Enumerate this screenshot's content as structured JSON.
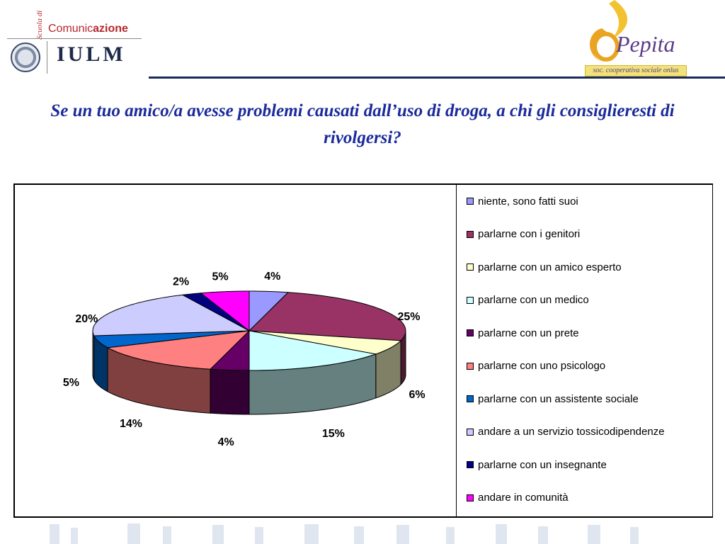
{
  "header": {
    "left_logo": {
      "scuola": "Scuola di",
      "comunic": "Comunic",
      "azione": "azione",
      "iulm": "IULM"
    },
    "right_logo": {
      "name": "Pepita",
      "tagline": "soc. cooperativa sociale onlus"
    }
  },
  "title": "Se un tuo amico/a avesse problemi causati dall’uso di droga, a chi gli consiglieresti di rivolgersi?",
  "chart_data": {
    "type": "pie",
    "title": "Se un tuo amico/a avesse problemi causati dall’uso di droga, a chi gli consiglieresti di rivolgersi?",
    "legend_position": "right",
    "slices": [
      {
        "label": "niente, sono fatti suoi",
        "value": 4,
        "display": "4%",
        "color": "#9999FF"
      },
      {
        "label": "parlarne con i genitori",
        "value": 25,
        "display": "25%",
        "color": "#993366"
      },
      {
        "label": "parlarne con un amico esperto",
        "value": 6,
        "display": "6%",
        "color": "#FFFFCC"
      },
      {
        "label": "parlarne con un medico",
        "value": 15,
        "display": "15%",
        "color": "#CCFFFF"
      },
      {
        "label": "parlarne con un prete",
        "value": 4,
        "display": "4%",
        "color": "#660066"
      },
      {
        "label": "parlarne con uno psicologo",
        "value": 14,
        "display": "14%",
        "color": "#FF8080"
      },
      {
        "label": "parlarne con un assistente sociale",
        "value": 5,
        "display": "5%",
        "color": "#0066CC"
      },
      {
        "label": "andare a un servizio tossicodipendenze",
        "value": 20,
        "display": "20%",
        "color": "#CCCCFF"
      },
      {
        "label": "parlarne con un insegnante",
        "value": 2,
        "display": "2%",
        "color": "#000080"
      },
      {
        "label": "andare in comunità",
        "value": 5,
        "display": "5%",
        "color": "#FF00FF"
      }
    ]
  }
}
